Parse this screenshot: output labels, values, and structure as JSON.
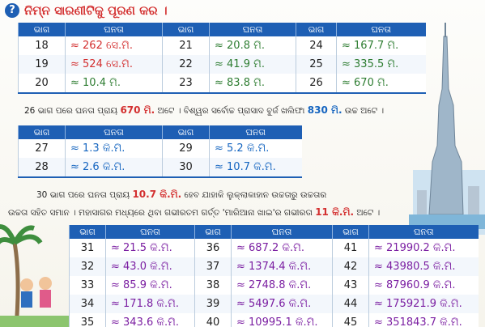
{
  "header": {
    "icon": "?",
    "title": "ନିମ୍ନ ସାରଣୀଟିକୁ ପୂରଣ କର ।"
  },
  "tables": [
    {
      "headers": [
        "ଭାଗ",
        "ଘନତା",
        "ଭାଗ",
        "ଘନତା",
        "ଭାଗ",
        "ଘନତା"
      ],
      "rows": [
        [
          "18",
          {
            "text": "≈ 262 ସେ.ମି.",
            "color": "#d32f2f"
          },
          "21",
          {
            "text": "≈ 20.8 ମି.",
            "color": "#2e7d32"
          },
          "24",
          {
            "text": "≈ 167.7 ମି.",
            "color": "#2e7d32"
          }
        ],
        [
          "19",
          {
            "text": "≈ 524 ସେ.ମି.",
            "color": "#d32f2f"
          },
          "22",
          {
            "text": "≈ 41.9 ମି.",
            "color": "#2e7d32"
          },
          "25",
          {
            "text": "≈ 335.5 ମି.",
            "color": "#2e7d32"
          }
        ],
        [
          "20",
          {
            "text": "≈ 10.4 ମି.",
            "color": "#2e7d32"
          },
          "23",
          {
            "text": "≈ 83.8 ମି.",
            "color": "#2e7d32"
          },
          "26",
          {
            "text": "≈ 670 ମି.",
            "color": "#2e7d32"
          }
        ]
      ]
    },
    {
      "headers": [
        "ଭାଗ",
        "ଘନତା",
        "ଭାଗ",
        "ଘନତା"
      ],
      "rows": [
        [
          "27",
          {
            "text": "≈ 1.3 କି.ମି.",
            "color": "#1565c0"
          },
          "29",
          {
            "text": "≈ 5.2 କି.ମି.",
            "color": "#1565c0"
          }
        ],
        [
          "28",
          {
            "text": "≈ 2.6 କି.ମି.",
            "color": "#1565c0"
          },
          "30",
          {
            "text": "≈ 10.7 କି.ମି.",
            "color": "#1565c0"
          }
        ]
      ]
    },
    {
      "headers": [
        "ଭାଗ",
        "ଘନତା",
        "ଭାଗ",
        "ଘନତା",
        "ଭାଗ",
        "ଘନତା"
      ],
      "rows": [
        [
          "31",
          {
            "text": "≈ 21.5 କି.ମି.",
            "color": "#7b1fa2"
          },
          "36",
          {
            "text": "≈ 687.2 କି.ମି.",
            "color": "#7b1fa2"
          },
          "41",
          {
            "text": "≈ 21990.2 କି.ମି.",
            "color": "#7b1fa2"
          }
        ],
        [
          "32",
          {
            "text": "≈ 43.0 କି.ମି.",
            "color": "#7b1fa2"
          },
          "37",
          {
            "text": "≈ 1374.4 କି.ମି.",
            "color": "#7b1fa2"
          },
          "42",
          {
            "text": "≈ 43980.5 କି.ମି.",
            "color": "#7b1fa2"
          }
        ],
        [
          "33",
          {
            "text": "≈ 85.9 କି.ମି.",
            "color": "#7b1fa2"
          },
          "38",
          {
            "text": "≈ 2748.8 କି.ମି.",
            "color": "#7b1fa2"
          },
          "43",
          {
            "text": "≈ 87960.9 କି.ମି.",
            "color": "#7b1fa2"
          }
        ],
        [
          "34",
          {
            "text": "≈ 171.8 କି.ମି.",
            "color": "#7b1fa2"
          },
          "39",
          {
            "text": "≈ 5497.6 କି.ମି.",
            "color": "#7b1fa2"
          },
          "44",
          {
            "text": "≈ 175921.9 କି.ମି.",
            "color": "#7b1fa2"
          }
        ],
        [
          "35",
          {
            "text": "≈ 343.6 କି.ମି.",
            "color": "#7b1fa2"
          },
          "40",
          {
            "text": "≈ 10995.1 କି.ମି.",
            "color": "#7b1fa2"
          },
          "45",
          {
            "text": "≈ 351843.7 କି.ମି.",
            "color": "#7b1fa2"
          }
        ]
      ]
    }
  ],
  "notes": [
    {
      "lines": [
        [
          {
            "text": "26 ଭାଗ ପରେ ଘନତା ପ୍ରାୟ"
          },
          {
            "text": "670 ମି.",
            "color": "#d32f2f"
          },
          {
            "text": "ଅଟେ । ବିଶ୍ୱର ସର୍ବୋଚ୍ଚ ପ୍ରାସାଦ ବୁର୍ଜ ଖଲିଫା"
          },
          {
            "text": "830 ମି.",
            "color": "#1565c0"
          },
          {
            "text": "ଉଚ୍ଚ ଅଟେ ।"
          }
        ]
      ]
    },
    {
      "lines": [
        [
          {
            "text": "30 ଭାଗ ପରେ ଘନତା ପ୍ରାୟ"
          },
          {
            "text": "10.7 କି.ମି.",
            "color": "#d32f2f"
          },
          {
            "text": "ହେବ ଯାହାକି ଲୁକ୍ଲାକାହାନ ଉଚ୍ଚତାରୁ ଉଚ୍ଚତାର"
          }
        ],
        [
          {
            "text": "ଉଚ୍ଚତା ସହିତ ସମାନ । ମହାସାଗର ମଧ୍ୟରେ ଥିବା ଗଭୀରତମ ଗର୍ତ୍ତ 'ମାରିଆନା ଖାଇ'ର ଗଭୀରତା"
          },
          {
            "text": "11 କି.ମି.",
            "color": "#d32f2f"
          },
          {
            "text": "ଅଟେ ।"
          }
        ]
      ]
    }
  ]
}
